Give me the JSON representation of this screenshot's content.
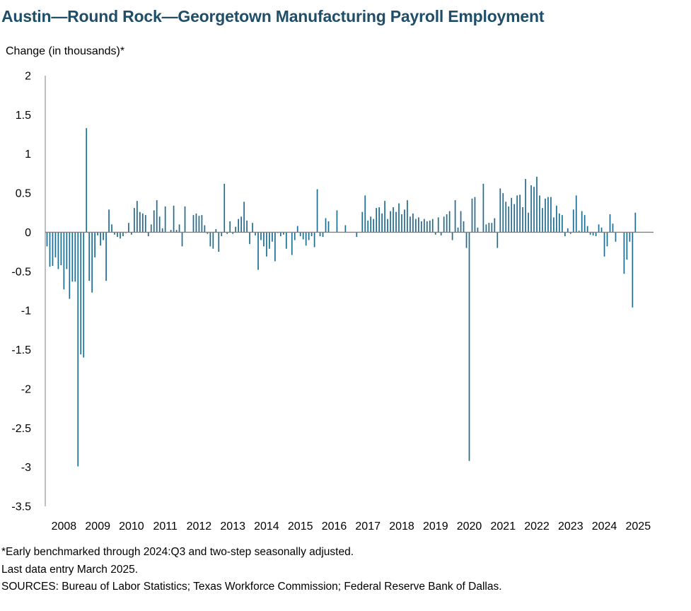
{
  "chart_data": {
    "type": "bar",
    "title": "Austin—Round Rock—Georgetown Manufacturing Payroll Employment",
    "ylabel": "Change (in thousands)*",
    "xlabel": "",
    "ylim": [
      -3.5,
      2
    ],
    "yticks": [
      "2",
      "1.5",
      "1",
      "0.5",
      "0",
      "-0.5",
      "-1",
      "-1.5",
      "-2",
      "-2.5",
      "-3",
      "-3.5"
    ],
    "ytick_values": [
      2,
      1.5,
      1,
      0.5,
      0,
      -0.5,
      -1,
      -1.5,
      -2,
      -2.5,
      -3,
      -3.5
    ],
    "x_tick_labels": [
      "2008",
      "2009",
      "2010",
      "2011",
      "2012",
      "2013",
      "2014",
      "2015",
      "2016",
      "2017",
      "2018",
      "2019",
      "2020",
      "2021",
      "2022",
      "2023",
      "2024",
      "2025"
    ],
    "start": "2008-01",
    "end": "2025-03",
    "frequency": "monthly",
    "color": "#1f6c91",
    "values": [
      -0.18,
      -0.44,
      -0.43,
      -0.32,
      -0.47,
      -0.42,
      -0.73,
      -0.47,
      -0.85,
      -0.63,
      -0.63,
      -2.99,
      -1.56,
      -1.6,
      1.33,
      -0.62,
      -0.77,
      -0.32,
      -0.04,
      -0.17,
      -0.1,
      -0.62,
      0.29,
      0.1,
      -0.03,
      -0.06,
      -0.08,
      -0.05,
      -0.01,
      0.12,
      -0.03,
      0.31,
      0.4,
      0.26,
      0.24,
      0.22,
      -0.05,
      0.1,
      0.28,
      0.41,
      0.2,
      0.05,
      0.33,
      0.0,
      0.03,
      0.34,
      0.03,
      0.1,
      -0.18,
      0.33,
      0.0,
      0.0,
      0.22,
      0.24,
      0.21,
      0.22,
      0.09,
      -0.02,
      -0.18,
      -0.21,
      0.04,
      -0.25,
      -0.05,
      0.62,
      -0.02,
      0.14,
      -0.02,
      0.07,
      0.17,
      0.2,
      0.39,
      0.15,
      -0.15,
      0.12,
      -0.04,
      -0.48,
      -0.1,
      -0.18,
      -0.31,
      -0.21,
      -0.12,
      -0.37,
      -0.01,
      -0.05,
      -0.03,
      -0.21,
      0.0,
      -0.29,
      -0.1,
      0.08,
      -0.05,
      -0.09,
      -0.17,
      -0.1,
      -0.05,
      -0.19,
      0.55,
      -0.05,
      -0.06,
      0.18,
      0.14,
      0.0,
      0.0,
      0.28,
      0.0,
      0.0,
      0.09,
      0.0,
      0.0,
      0.0,
      -0.06,
      0.0,
      0.26,
      0.47,
      0.15,
      0.2,
      0.17,
      0.31,
      0.32,
      0.24,
      0.4,
      0.17,
      0.27,
      0.32,
      0.26,
      0.37,
      0.23,
      0.29,
      0.41,
      0.2,
      0.24,
      0.17,
      0.19,
      0.14,
      0.17,
      0.14,
      0.15,
      0.17,
      -0.03,
      0.19,
      -0.04,
      0.2,
      0.23,
      0.27,
      -0.1,
      0.41,
      0.06,
      0.27,
      0.14,
      -0.2,
      -2.92,
      0.43,
      0.45,
      0.06,
      0.0,
      0.62,
      0.1,
      0.12,
      0.12,
      0.18,
      -0.2,
      0.56,
      0.5,
      0.39,
      0.33,
      0.44,
      0.36,
      0.47,
      0.48,
      0.32,
      0.68,
      0.25,
      0.6,
      0.58,
      0.71,
      0.47,
      0.31,
      0.43,
      0.45,
      0.45,
      0.19,
      0.34,
      0.24,
      0.22,
      -0.05,
      0.05,
      -0.02,
      0.29,
      0.47,
      0.02,
      0.27,
      0.22,
      0.08,
      -0.03,
      -0.04,
      -0.05,
      0.1,
      0.06,
      -0.31,
      -0.18,
      0.23,
      0.11,
      -0.12,
      0.0,
      0.0,
      -0.53,
      -0.35,
      -0.12,
      -0.96,
      0.25
    ]
  },
  "notes": {
    "footnote": "*Early benchmarked through 2024:Q3 and two-step seasonally adjusted.",
    "last_entry": "Last data entry March 2025.",
    "sources": "SOURCES:  Bureau of Labor Statistics; Texas Workforce Commission;  Federal Reserve Bank of Dallas."
  }
}
